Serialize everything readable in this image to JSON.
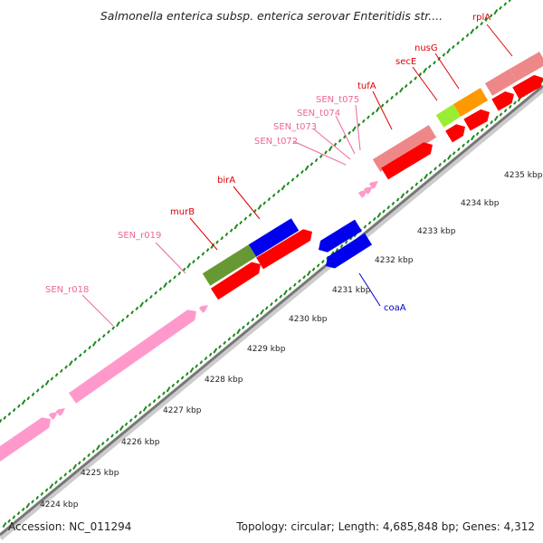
{
  "title": "Salmonella enterica subsp. enterica serovar Enteritidis str....",
  "footer": {
    "accession": "Accession: NC_011294",
    "summary": "Topology: circular; Length: 4,685,848 bp; Genes: 4,312"
  },
  "colors": {
    "backbone": "#777777",
    "tick": "#1a8a1a",
    "gene_red": "#ff0000",
    "gene_blue": "#0000ee",
    "rrna_pink": "#ff99cc",
    "trna_pink": "#ff99cc",
    "rrna_label": "#ee6699",
    "feature_salmon": "#ee8888",
    "feature_olive": "#669933",
    "feature_lime": "#99ee33",
    "feature_orange": "#ff9900",
    "label_red": "#dd0000",
    "label_blue": "#0000cc"
  },
  "ruler": {
    "ticks_kbp": [
      "4224 kbp",
      "4225 kbp",
      "4226 kbp",
      "4227 kbp",
      "4228 kbp",
      "4229 kbp",
      "4230 kbp",
      "4231 kbp",
      "4232 kbp",
      "4233 kbp",
      "4234 kbp",
      "4235 kbp"
    ]
  },
  "gene_labels": [
    {
      "name": "SEN_r018",
      "strand": "forward",
      "type": "rRNA"
    },
    {
      "name": "SEN_r019",
      "strand": "forward",
      "type": "rRNA"
    },
    {
      "name": "murB",
      "strand": "forward",
      "type": "CDS"
    },
    {
      "name": "birA",
      "strand": "forward",
      "type": "CDS"
    },
    {
      "name": "SEN_t072",
      "strand": "forward",
      "type": "tRNA"
    },
    {
      "name": "SEN_t073",
      "strand": "forward",
      "type": "tRNA"
    },
    {
      "name": "SEN_t074",
      "strand": "forward",
      "type": "tRNA"
    },
    {
      "name": "SEN_t075",
      "strand": "forward",
      "type": "tRNA"
    },
    {
      "name": "tufA",
      "strand": "forward",
      "type": "CDS"
    },
    {
      "name": "secE",
      "strand": "forward",
      "type": "CDS"
    },
    {
      "name": "nusG",
      "strand": "forward",
      "type": "CDS"
    },
    {
      "name": "rplA",
      "strand": "forward",
      "type": "CDS"
    },
    {
      "name": "coaA",
      "strand": "reverse",
      "type": "CDS"
    }
  ]
}
